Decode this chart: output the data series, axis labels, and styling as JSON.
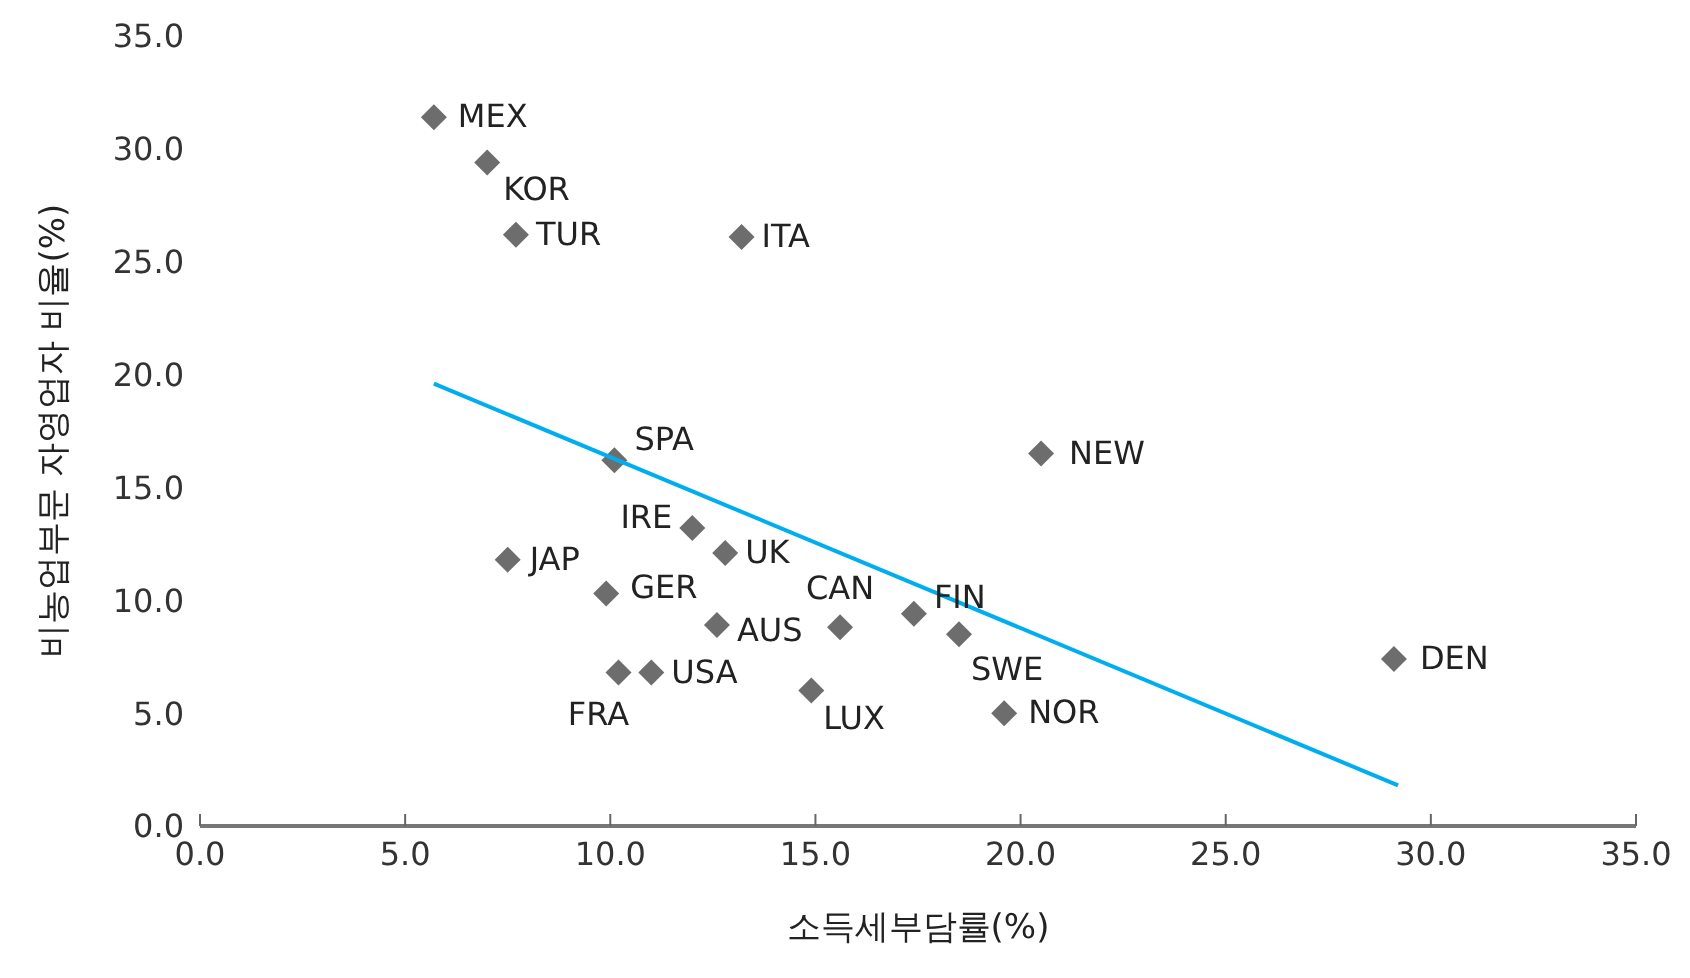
{
  "chart_data": {
    "type": "scatter",
    "xlabel": "소득세부담률(%)",
    "ylabel": "비농업부문 자영업자 비율(%)",
    "xlim": [
      0,
      35
    ],
    "xticks": [
      {
        "value": 0,
        "label": "0.0"
      },
      {
        "value": 5,
        "label": "5.0"
      },
      {
        "value": 10,
        "label": "10.0"
      },
      {
        "value": 15,
        "label": "15.0"
      },
      {
        "value": 20,
        "label": "20.0"
      },
      {
        "value": 25,
        "label": "25.0"
      },
      {
        "value": 30,
        "label": "30.0"
      },
      {
        "value": 35,
        "label": "35.0"
      }
    ],
    "ylim": [
      0,
      35
    ],
    "yticks": [
      {
        "value": 0,
        "label": "0.0"
      },
      {
        "value": 5,
        "label": "5.0"
      },
      {
        "value": 10,
        "label": "10.0"
      },
      {
        "value": 15,
        "label": "15.0"
      },
      {
        "value": 20,
        "label": "20.0"
      },
      {
        "value": 25,
        "label": "25.0"
      },
      {
        "value": 30,
        "label": "30.0"
      },
      {
        "value": 35,
        "label": "35.0"
      }
    ],
    "grid": false,
    "legend": false,
    "series": [
      {
        "marker": "diamond",
        "color": "#6d6d6d",
        "x": [
          5.7,
          7.0,
          7.7,
          13.2,
          10.1,
          20.5,
          12.0,
          12.8,
          7.5,
          9.9,
          15.6,
          17.4,
          12.6,
          18.5,
          29.1,
          10.2,
          11.0,
          14.9,
          19.6
        ],
        "values": [
          31.4,
          29.4,
          26.2,
          26.1,
          16.2,
          16.5,
          13.2,
          12.1,
          11.8,
          10.3,
          8.8,
          9.4,
          8.9,
          8.5,
          7.4,
          6.8,
          6.8,
          6.0,
          5.0
        ]
      },
      {
        "type": "line",
        "marker": "none",
        "color": "#00aeef",
        "x": [
          5.7,
          29.2
        ],
        "values": [
          19.6,
          1.8
        ]
      }
    ],
    "annotations": [
      {
        "text": "MEX",
        "x": 5.7,
        "y": 31.4
      },
      {
        "text": "KOR",
        "x": 7.0,
        "y": 29.4
      },
      {
        "text": "TUR",
        "x": 7.7,
        "y": 26.2
      },
      {
        "text": "ITA",
        "x": 13.2,
        "y": 26.1
      },
      {
        "text": "SPA",
        "x": 10.1,
        "y": 16.2
      },
      {
        "text": "NEW",
        "x": 20.5,
        "y": 16.5
      },
      {
        "text": "IRE",
        "x": 12.0,
        "y": 13.2
      },
      {
        "text": "UK",
        "x": 12.8,
        "y": 12.1
      },
      {
        "text": "JAP",
        "x": 7.5,
        "y": 11.8
      },
      {
        "text": "GER",
        "x": 9.9,
        "y": 10.3
      },
      {
        "text": "CAN",
        "x": 15.6,
        "y": 8.8
      },
      {
        "text": "FIN",
        "x": 17.4,
        "y": 9.4
      },
      {
        "text": "AUS",
        "x": 12.6,
        "y": 8.9
      },
      {
        "text": "SWE",
        "x": 18.5,
        "y": 8.5
      },
      {
        "text": "DEN",
        "x": 29.1,
        "y": 7.4
      },
      {
        "text": "FRA",
        "x": 10.2,
        "y": 6.8
      },
      {
        "text": "USA",
        "x": 11.0,
        "y": 6.8
      },
      {
        "text": "LUX",
        "x": 14.9,
        "y": 6.0
      },
      {
        "text": "NOR",
        "x": 19.6,
        "y": 5.0
      }
    ]
  }
}
